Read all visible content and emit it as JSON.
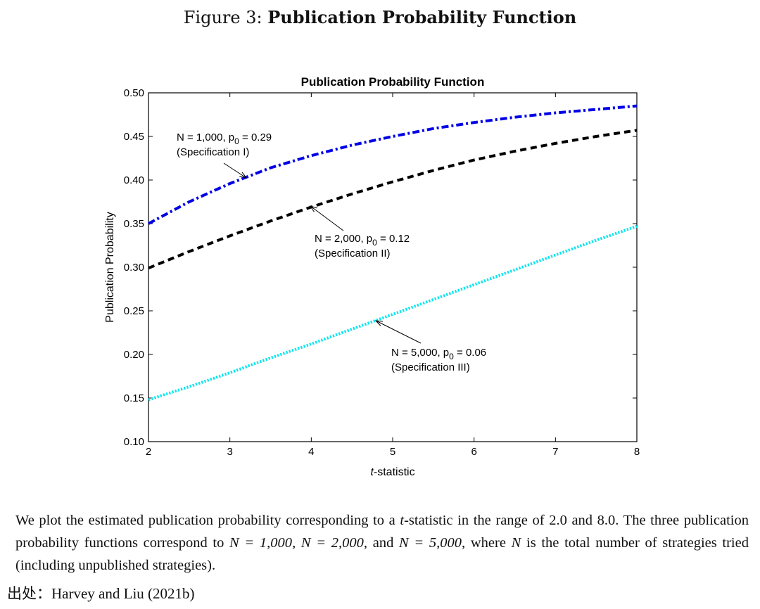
{
  "figure": {
    "caption_prefix": "Figure 3:",
    "caption_title": "Publication Probability Function"
  },
  "chart_data": {
    "type": "line",
    "title": "Publication Probability Function",
    "xlabel_italic": "t",
    "xlabel_rest": "-statistic",
    "ylabel": "Publication Probability",
    "xlim": [
      2,
      8
    ],
    "ylim": [
      0.1,
      0.5
    ],
    "xticks": [
      2,
      3,
      4,
      5,
      6,
      7,
      8
    ],
    "yticks": [
      0.1,
      0.15,
      0.2,
      0.25,
      0.3,
      0.35,
      0.4,
      0.45,
      0.5
    ],
    "ytick_labels": [
      "0.10",
      "0.15",
      "0.20",
      "0.25",
      "0.30",
      "0.35",
      "0.40",
      "0.45",
      "0.50"
    ],
    "grid": false,
    "x": [
      2,
      2.5,
      3,
      3.5,
      4,
      4.5,
      5,
      5.5,
      6,
      6.5,
      7,
      7.5,
      8
    ],
    "series": [
      {
        "color": "#0000e6",
        "style": "dashdot",
        "values": [
          0.35,
          0.375,
          0.396,
          0.414,
          0.428,
          0.44,
          0.45,
          0.459,
          0.466,
          0.472,
          0.477,
          0.481,
          0.485
        ]
      },
      {
        "color": "#000000",
        "style": "dashed",
        "values": [
          0.299,
          0.318,
          0.336,
          0.353,
          0.369,
          0.384,
          0.398,
          0.411,
          0.423,
          0.433,
          0.442,
          0.45,
          0.457
        ]
      },
      {
        "color": "#00e6f0",
        "style": "dotted",
        "values": [
          0.148,
          0.163,
          0.179,
          0.196,
          0.212,
          0.229,
          0.246,
          0.263,
          0.28,
          0.297,
          0.314,
          0.331,
          0.347
        ]
      }
    ],
    "annotations": [
      {
        "line1_pre": "N = 1,000, p",
        "sub": "0",
        "line1_post": " = 0.29",
        "line2": "(Specification I)"
      },
      {
        "line1_pre": "N = 2,000, p",
        "sub": "0",
        "line1_post": " = 0.12",
        "line2": "(Specification II)"
      },
      {
        "line1_pre": "N = 5,000, p",
        "sub": "0",
        "line1_post": " = 0.06",
        "line2": "(Specification III)"
      }
    ]
  },
  "description": {
    "part1": "We plot the estimated publication probability corresponding to a ",
    "t_symbol": "t",
    "part2": "-statistic in the range of 2.0 and 8.0. The three publication probability functions correspond to ",
    "eq1": "N = 1,000",
    "eq2": "N = 2,000",
    "eq3": "N = 5,000",
    "part3": ", where ",
    "n_symbol": "N",
    "part4": " is the total number of strategies tried (including unpublished strategies).",
    "comma": ", ",
    "and": ", and "
  },
  "source": {
    "label": "出处：",
    "text": "Harvey and Liu (2021b)"
  }
}
